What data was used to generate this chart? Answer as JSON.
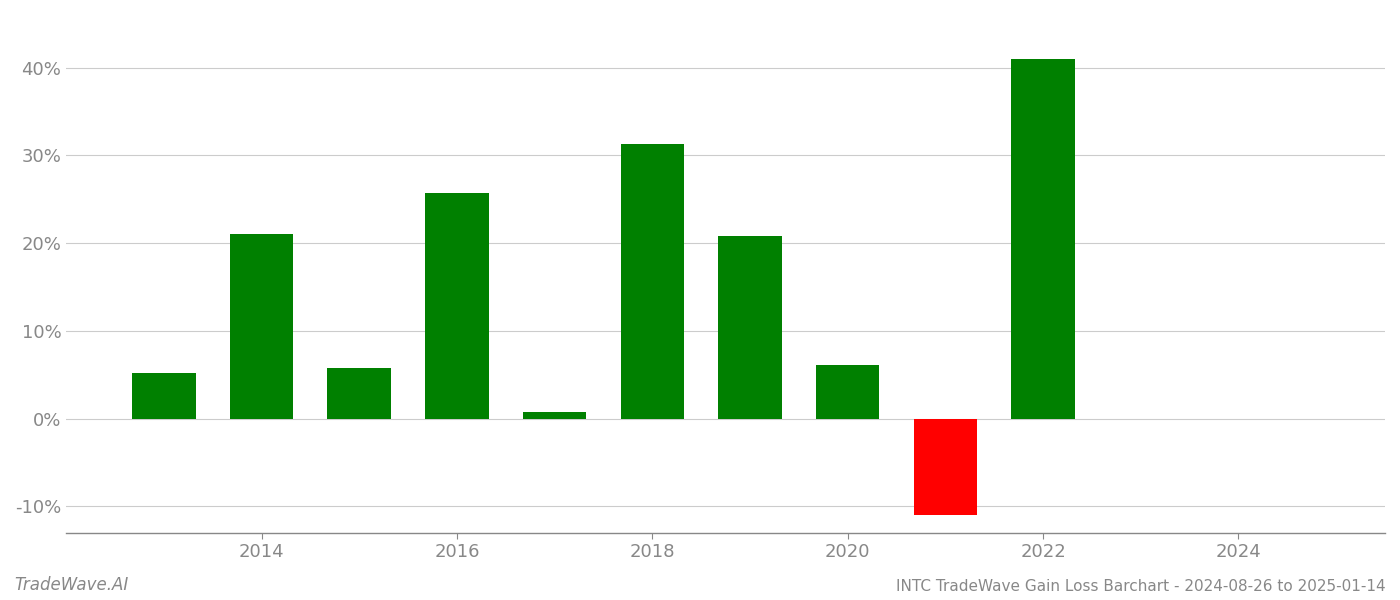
{
  "years": [
    2013,
    2014,
    2015,
    2016,
    2017,
    2018,
    2019,
    2020,
    2021,
    2022,
    2023
  ],
  "values": [
    5.2,
    21.0,
    5.8,
    25.7,
    0.7,
    31.3,
    20.8,
    6.1,
    -11.0,
    41.0,
    0.0
  ],
  "bar_colors": [
    "#008000",
    "#008000",
    "#008000",
    "#008000",
    "#008000",
    "#008000",
    "#008000",
    "#008000",
    "#ff0000",
    "#008000",
    "#ffffff"
  ],
  "title": "INTC TradeWave Gain Loss Barchart - 2024-08-26 to 2025-01-14",
  "watermark": "TradeWave.AI",
  "xlim": [
    2012.0,
    2025.5
  ],
  "ylim": [
    -13,
    46
  ],
  "yticks": [
    -10,
    0,
    10,
    20,
    30,
    40
  ],
  "xticks": [
    2014,
    2016,
    2018,
    2020,
    2022,
    2024
  ],
  "grid_color": "#cccccc",
  "background_color": "#ffffff",
  "axis_color": "#888888",
  "text_color": "#888888",
  "bar_width": 0.65
}
